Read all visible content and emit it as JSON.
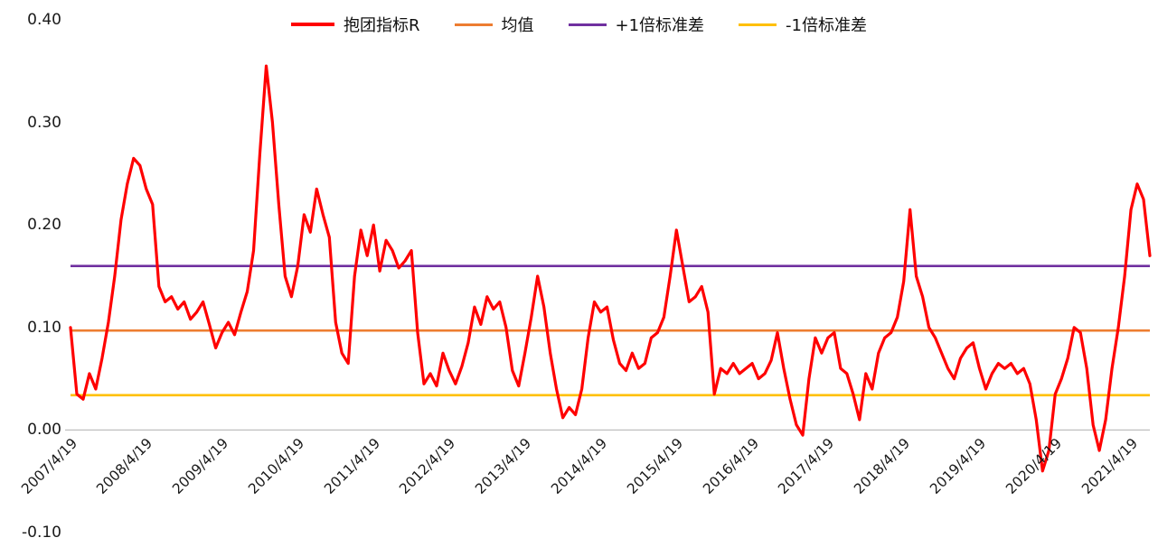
{
  "chart_data": {
    "type": "line",
    "title": "",
    "legend_position": "top",
    "grid": "off",
    "legend": [
      {
        "label": "抱团指标R",
        "color": "#FF0000"
      },
      {
        "label": "均值",
        "color": "#ED7D31"
      },
      {
        "label": "+1倍标准差",
        "color": "#7030A0"
      },
      {
        "label": "-1倍标准差",
        "color": "#FFC000"
      }
    ],
    "y_axis": {
      "min": -0.1,
      "max": 0.4,
      "ticks": [
        "0.40",
        "0.30",
        "0.20",
        "0.10",
        "0.00",
        "-0.10"
      ]
    },
    "x_axis": {
      "ticks": [
        "2007/4/19",
        "2008/4/19",
        "2009/4/19",
        "2010/4/19",
        "2011/4/19",
        "2012/4/19",
        "2013/4/19",
        "2014/4/19",
        "2015/4/19",
        "2016/4/19",
        "2017/4/19",
        "2018/4/19",
        "2019/4/19",
        "2020/4/19",
        "2021/4/19"
      ]
    },
    "reference_lines": [
      {
        "id": "mean",
        "label": "均值",
        "value": 0.097,
        "color": "#ED7D31"
      },
      {
        "id": "plus-1sd",
        "label": "+1倍标准差",
        "value": 0.16,
        "color": "#7030A0"
      },
      {
        "id": "minus-1sd",
        "label": "-1倍标准差",
        "value": 0.034,
        "color": "#FFC000"
      }
    ],
    "series": {
      "name": "抱团指标R",
      "color": "#FF0000",
      "start": "2007/4/19",
      "interval": "monthly",
      "values": [
        0.1,
        0.035,
        0.03,
        0.055,
        0.04,
        0.07,
        0.105,
        0.15,
        0.205,
        0.24,
        0.265,
        0.258,
        0.235,
        0.22,
        0.14,
        0.125,
        0.13,
        0.118,
        0.125,
        0.108,
        0.115,
        0.125,
        0.103,
        0.08,
        0.095,
        0.105,
        0.093,
        0.115,
        0.135,
        0.175,
        0.27,
        0.355,
        0.3,
        0.22,
        0.15,
        0.13,
        0.16,
        0.21,
        0.193,
        0.235,
        0.21,
        0.188,
        0.105,
        0.075,
        0.065,
        0.15,
        0.195,
        0.17,
        0.2,
        0.155,
        0.185,
        0.175,
        0.158,
        0.165,
        0.175,
        0.095,
        0.045,
        0.055,
        0.043,
        0.075,
        0.058,
        0.045,
        0.062,
        0.085,
        0.12,
        0.103,
        0.13,
        0.118,
        0.125,
        0.1,
        0.058,
        0.043,
        0.075,
        0.11,
        0.15,
        0.12,
        0.075,
        0.04,
        0.012,
        0.022,
        0.015,
        0.04,
        0.09,
        0.125,
        0.115,
        0.12,
        0.088,
        0.065,
        0.058,
        0.075,
        0.06,
        0.065,
        0.09,
        0.095,
        0.11,
        0.15,
        0.195,
        0.16,
        0.125,
        0.13,
        0.14,
        0.115,
        0.035,
        0.06,
        0.055,
        0.065,
        0.055,
        0.06,
        0.065,
        0.05,
        0.055,
        0.068,
        0.095,
        0.06,
        0.03,
        0.005,
        -0.005,
        0.05,
        0.09,
        0.075,
        0.09,
        0.095,
        0.06,
        0.055,
        0.035,
        0.01,
        0.055,
        0.04,
        0.075,
        0.09,
        0.095,
        0.11,
        0.145,
        0.215,
        0.15,
        0.13,
        0.1,
        0.09,
        0.075,
        0.06,
        0.05,
        0.07,
        0.08,
        0.085,
        0.06,
        0.04,
        0.055,
        0.065,
        0.06,
        0.065,
        0.055,
        0.06,
        0.045,
        0.01,
        -0.04,
        -0.02,
        0.035,
        0.05,
        0.07,
        0.1,
        0.095,
        0.06,
        0.005,
        -0.02,
        0.01,
        0.06,
        0.1,
        0.15,
        0.215,
        0.24,
        0.225,
        0.17
      ]
    }
  }
}
